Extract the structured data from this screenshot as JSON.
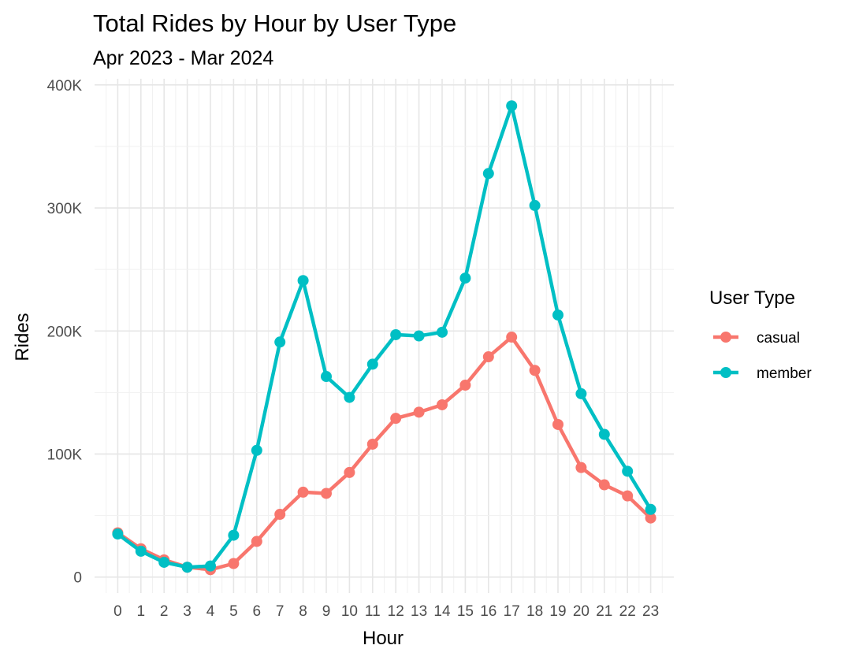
{
  "chart_data": {
    "type": "line",
    "title": "Total Rides by Hour by User Type",
    "subtitle": "Apr 2023 - Mar 2024",
    "xlabel": "Hour",
    "ylabel": "Rides",
    "x": [
      0,
      1,
      2,
      3,
      4,
      5,
      6,
      7,
      8,
      9,
      10,
      11,
      12,
      13,
      14,
      15,
      16,
      17,
      18,
      19,
      20,
      21,
      22,
      23
    ],
    "xlim": [
      -1,
      24
    ],
    "ylim": [
      -13000,
      405000
    ],
    "y_ticks": [
      0,
      100000,
      200000,
      300000,
      400000
    ],
    "y_tick_labels": [
      "0",
      "100K",
      "200K",
      "300K",
      "400K"
    ],
    "x_tick_labels": [
      "0",
      "1",
      "2",
      "3",
      "4",
      "5",
      "6",
      "7",
      "8",
      "9",
      "10",
      "11",
      "12",
      "13",
      "14",
      "15",
      "16",
      "17",
      "18",
      "19",
      "20",
      "21",
      "22",
      "23"
    ],
    "grid": true,
    "legend": {
      "title": "User Type",
      "position": "right"
    },
    "series": [
      {
        "name": "casual",
        "color": "#F8766D",
        "values": [
          36000,
          23000,
          14000,
          8000,
          6000,
          11000,
          29000,
          51000,
          69000,
          68000,
          85000,
          108000,
          129000,
          134000,
          140000,
          156000,
          179000,
          195000,
          168000,
          124000,
          89000,
          75000,
          66000,
          48000
        ]
      },
      {
        "name": "member",
        "color": "#00BFC4",
        "values": [
          35000,
          21000,
          12000,
          8000,
          9000,
          34000,
          103000,
          191000,
          241000,
          163000,
          146000,
          173000,
          197000,
          196000,
          199000,
          243000,
          328000,
          383000,
          302000,
          213000,
          149000,
          116000,
          86000,
          55000
        ]
      }
    ]
  }
}
